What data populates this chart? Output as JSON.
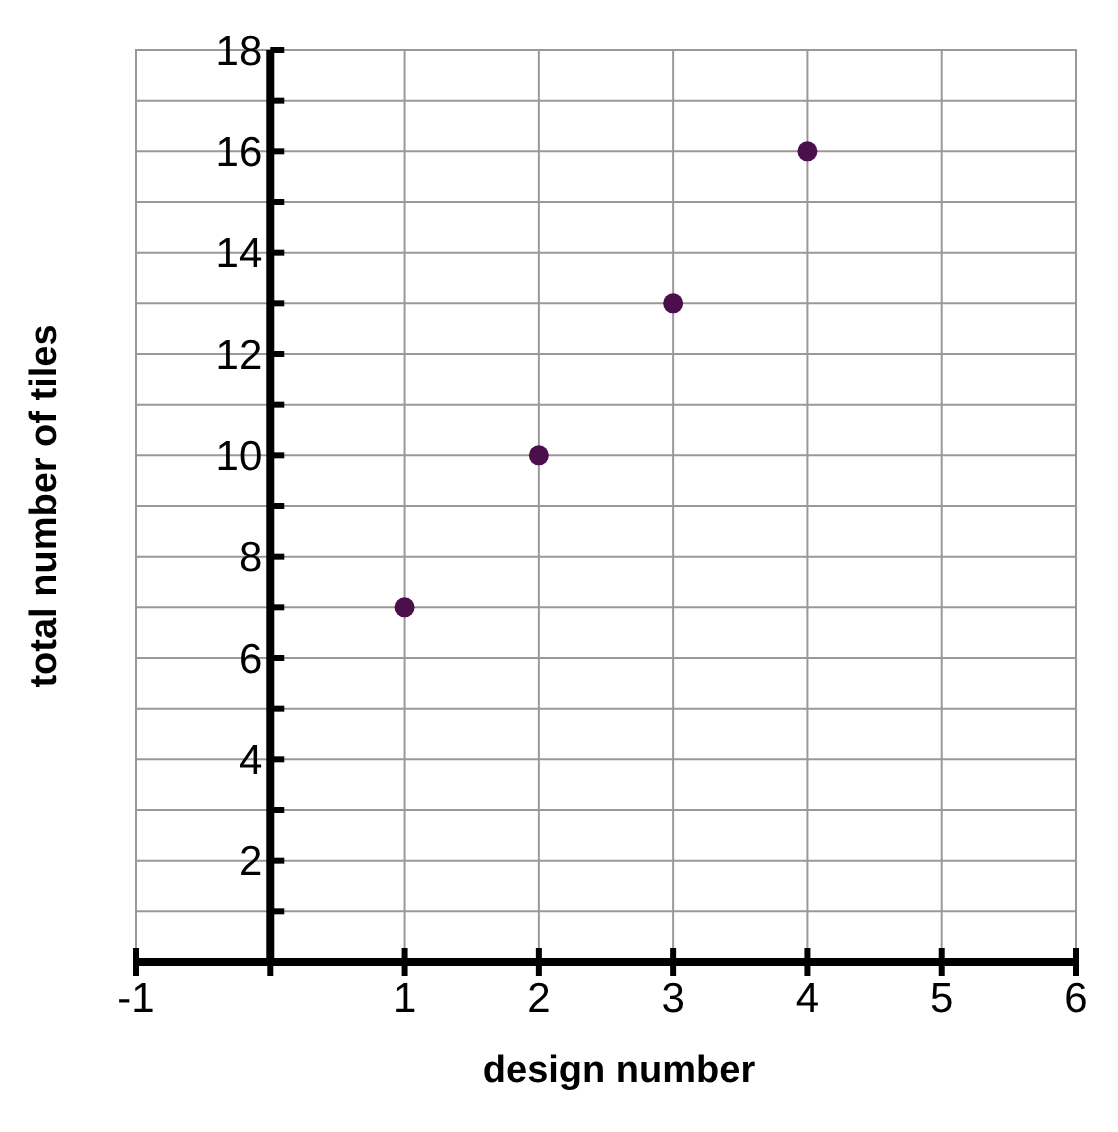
{
  "chart_data": {
    "type": "scatter",
    "xlabel": "design number",
    "ylabel": "total number of  tiles",
    "x": [
      1,
      2,
      3,
      4
    ],
    "values": [
      7,
      10,
      13,
      16
    ],
    "color": "#4b0f4b",
    "marker": "circle",
    "xlim": [
      -1,
      6
    ],
    "ylim": [
      0,
      18
    ],
    "xticks": [
      -1,
      {
        "value": 0,
        "label": null
      },
      1,
      2,
      3,
      4,
      5,
      6
    ],
    "yticks": [
      {
        "value": 0,
        "label": null
      },
      {
        "value": 1,
        "label": null
      },
      2,
      {
        "value": 3,
        "label": null
      },
      4,
      {
        "value": 5,
        "label": null
      },
      6,
      {
        "value": 7,
        "label": null
      },
      8,
      {
        "value": 9,
        "label": null
      },
      10,
      {
        "value": 11,
        "label": null
      },
      12,
      {
        "value": 13,
        "label": null
      },
      14,
      {
        "value": 15,
        "label": null
      },
      16,
      {
        "value": 17,
        "label": null
      },
      18
    ],
    "grid": true
  }
}
